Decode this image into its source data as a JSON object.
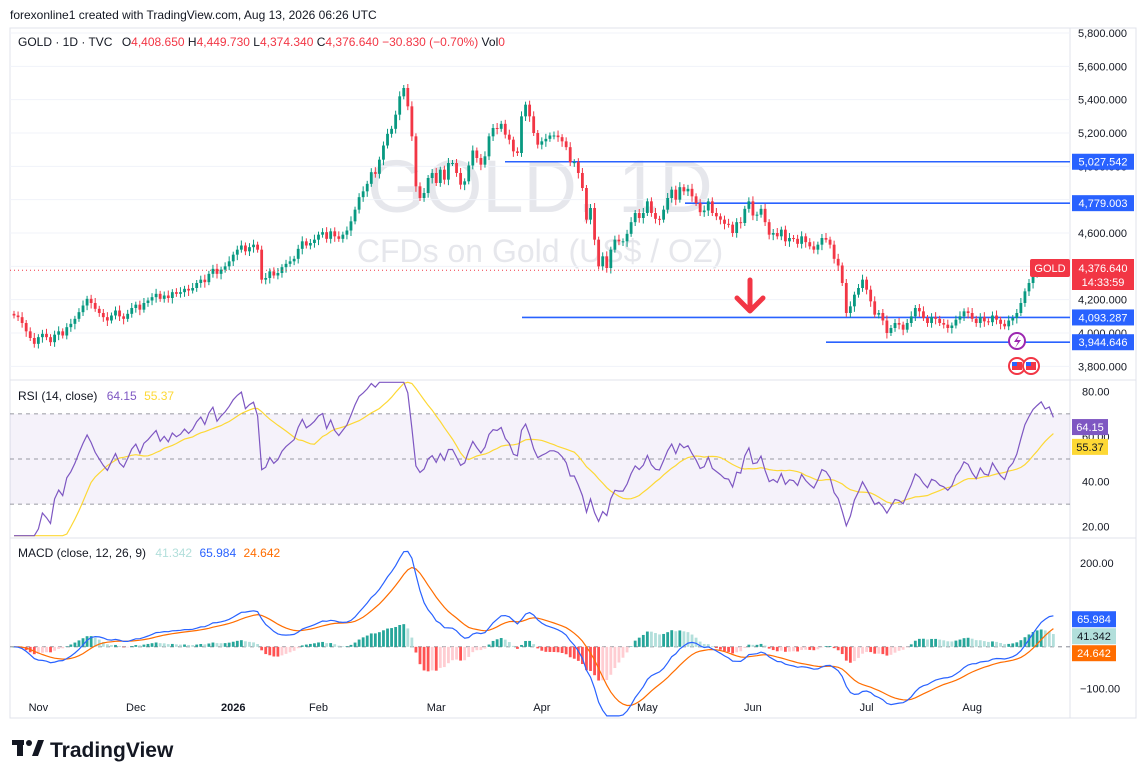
{
  "header": {
    "credit": "forexonline1 created with TradingView.com, Aug 13, 2026 06:26 UTC"
  },
  "legend": {
    "symbol": "GOLD · 1D · TVC",
    "o_label": "O",
    "o": "4,408.650",
    "h_label": "H",
    "h": "4,449.730",
    "l_label": "L",
    "l": "4,374.340",
    "c_label": "C",
    "c": "4,376.640",
    "change": "−30.830 (−0.70%)",
    "vol_label": "Vol",
    "vol": "0"
  },
  "watermark": {
    "line1": "GOLD, 1D",
    "line2": "CFDs on Gold (US$ / OZ)"
  },
  "rsi": {
    "title": "RSI (14, close)",
    "value": "64.15",
    "ma_value": "55.37"
  },
  "macd": {
    "title": "MACD (close, 12, 26, 9)",
    "hist_value": "41.342",
    "macd_value": "65.984",
    "signal_value": "24.642"
  },
  "price_badges": {
    "symbol_tag": "GOLD",
    "last_price": "4,376.640",
    "countdown": "14:33:59"
  },
  "footer": {
    "brand": "TradingView"
  },
  "colors": {
    "up": "#089981",
    "down": "#f23645",
    "level_line": "#2962ff",
    "rsi_line": "#7e57c2",
    "rsi_ma": "#fdd835",
    "macd_line": "#2962ff",
    "signal_line": "#ff6d00",
    "hist_up_strong": "#26a69a",
    "hist_up_weak": "#b2dfdb",
    "hist_down_strong": "#ff5252",
    "hist_down_weak": "#ffcdd2",
    "arrow": "#f23645"
  },
  "chart_data": {
    "type": "candlestick",
    "price_axis": {
      "ticks": [
        3800,
        4000,
        4200,
        4400,
        4600,
        4800,
        5000,
        5200,
        5400,
        5600,
        5800
      ],
      "tick_labels": [
        "3,800.000",
        "4,000.000",
        "4,200.000",
        "4,400.000",
        "4,600.000",
        "4,800.000",
        "5,000.000",
        "5,200.000",
        "5,400.000",
        "5,600.000",
        "5,800.000"
      ],
      "range": [
        3730,
        5830
      ]
    },
    "time_axis": {
      "labels": [
        "Nov",
        "Dec",
        "2026",
        "Feb",
        "Mar",
        "Apr",
        "May",
        "Jun",
        "Jul",
        "Aug"
      ]
    },
    "horizontal_levels": [
      {
        "value": 5027.542,
        "label": "5,027.542"
      },
      {
        "value": 4779.003,
        "label": "4,779.003"
      },
      {
        "value": 4093.287,
        "label": "4,093.287"
      },
      {
        "value": 3944.646,
        "label": "3,944.646"
      }
    ],
    "closes": [
      4105,
      4095,
      4060,
      4010,
      3970,
      3935,
      3975,
      3995,
      3975,
      3945,
      3990,
      4010,
      3985,
      4035,
      4055,
      4085,
      4125,
      4165,
      4205,
      4180,
      4145,
      4120,
      4095,
      4075,
      4105,
      4135,
      4100,
      4085,
      4115,
      4150,
      4170,
      4140,
      4180,
      4195,
      4215,
      4235,
      4205,
      4225,
      4210,
      4245,
      4235,
      4245,
      4265,
      4255,
      4270,
      4300,
      4320,
      4305,
      4355,
      4385,
      4355,
      4380,
      4400,
      4430,
      4470,
      4500,
      4525,
      4490,
      4515,
      4530,
      4500,
      4320,
      4330,
      4370,
      4345,
      4360,
      4395,
      4415,
      4430,
      4445,
      4505,
      4550,
      4525,
      4540,
      4560,
      4590,
      4605,
      4565,
      4610,
      4580,
      4565,
      4590,
      4615,
      4670,
      4740,
      4815,
      4850,
      4895,
      4965,
      4955,
      5040,
      5125,
      5195,
      5225,
      5310,
      5420,
      5470,
      5360,
      5180,
      4880,
      4810,
      4840,
      4930,
      4960,
      4900,
      4980,
      4920,
      5020,
      5020,
      4960,
      4890,
      4910,
      5005,
      5095,
      5050,
      5010,
      5060,
      5180,
      5230,
      5225,
      5255,
      5190,
      5160,
      5090,
      5080,
      5300,
      5370,
      5300,
      5200,
      5130,
      5150,
      5165,
      5185,
      5185,
      5175,
      5150,
      5115,
      5025,
      5025,
      4960,
      4870,
      4680,
      4750,
      4560,
      4400,
      4460,
      4390,
      4500,
      4560,
      4550,
      4550,
      4595,
      4665,
      4720,
      4690,
      4720,
      4790,
      4720,
      4685,
      4680,
      4740,
      4810,
      4860,
      4800,
      4875,
      4850,
      4865,
      4820,
      4780,
      4725,
      4735,
      4790,
      4720,
      4700,
      4680,
      4655,
      4650,
      4600,
      4665,
      4660,
      4745,
      4790,
      4705,
      4710,
      4745,
      4665,
      4590,
      4600,
      4580,
      4620,
      4550,
      4570,
      4565,
      4535,
      4580,
      4545,
      4520,
      4500,
      4530,
      4570,
      4560,
      4530,
      4445,
      4405,
      4300,
      4120,
      4160,
      4230,
      4270,
      4320,
      4260,
      4190,
      4110,
      4120,
      4075,
      4000,
      4030,
      4060,
      4050,
      4020,
      4060,
      4100,
      4150,
      4130,
      4090,
      4060,
      4095,
      4085,
      4060,
      4050,
      4030,
      4045,
      4080,
      4100,
      4130,
      4120,
      4085,
      4060,
      4095,
      4070,
      4065,
      4105,
      4080,
      4055,
      4040,
      4075,
      4090,
      4120,
      4180,
      4250,
      4300,
      4350,
      4380,
      4410,
      4390,
      4405,
      4376.64
    ]
  }
}
